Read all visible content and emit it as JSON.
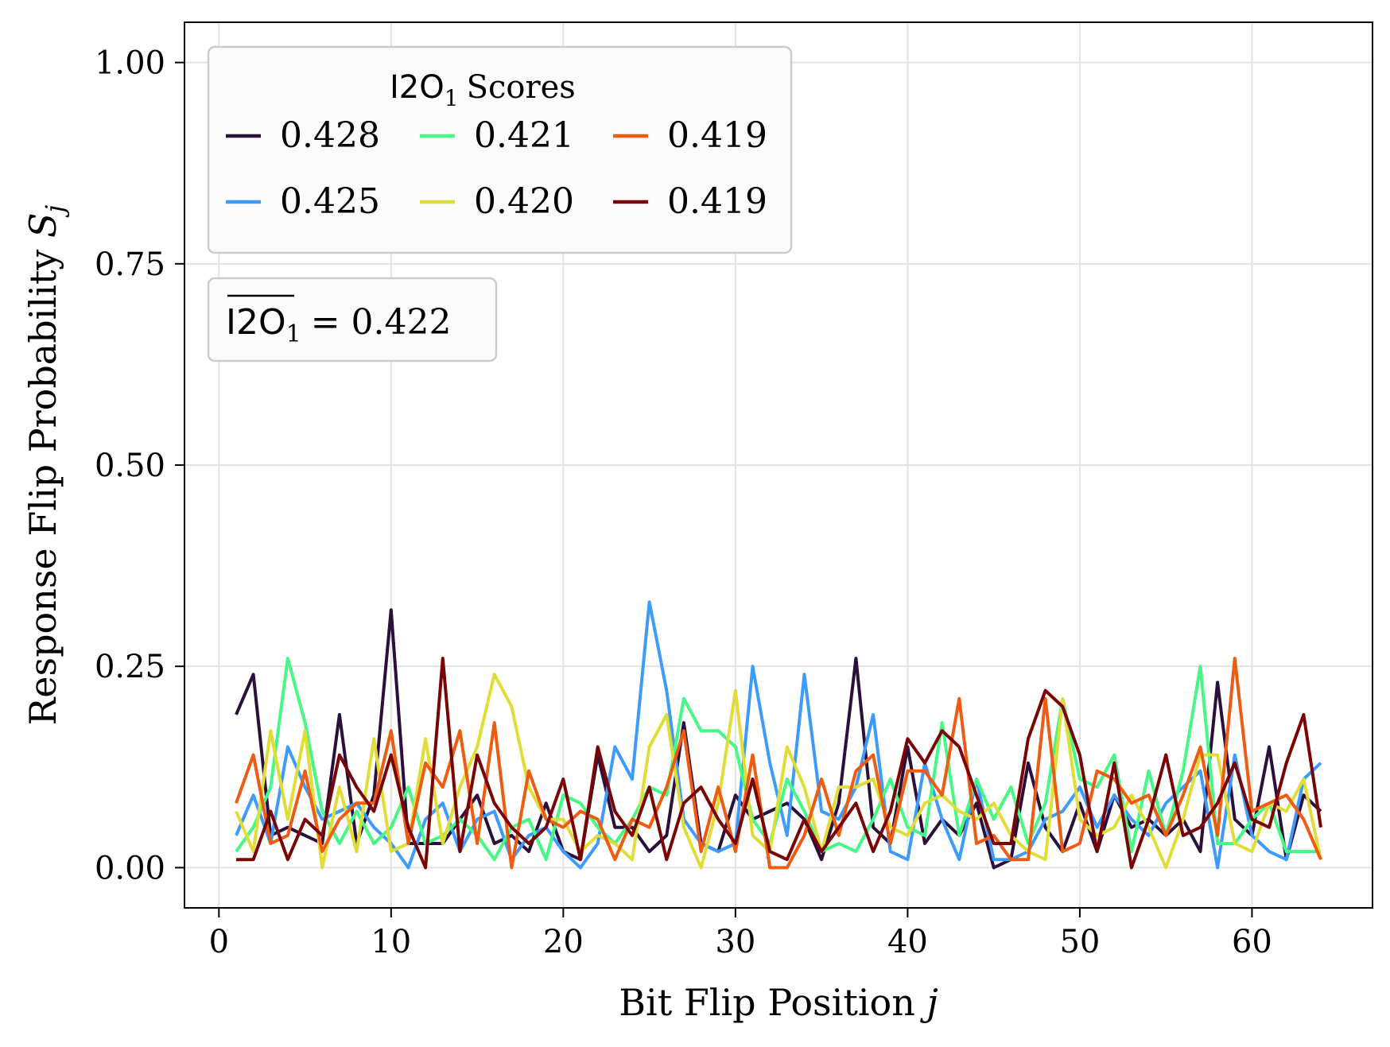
{
  "chart_data": {
    "type": "line",
    "xlabel": "Bit Flip Position",
    "xlabel_var": "j",
    "ylabel": "Response Flip Probability",
    "ylabel_var": "S",
    "ylabel_sub": "j",
    "xlim": [
      -2,
      67
    ],
    "ylim": [
      -0.05,
      1.05
    ],
    "xticks": [
      0,
      10,
      20,
      30,
      40,
      50,
      60
    ],
    "xtick_labels": [
      "0",
      "10",
      "20",
      "30",
      "40",
      "50",
      "60"
    ],
    "yticks": [
      0.0,
      0.25,
      0.5,
      0.75,
      1.0
    ],
    "ytick_labels": [
      "0.00",
      "0.25",
      "0.50",
      "0.75",
      "1.00"
    ],
    "grid": true,
    "legend": {
      "placement": "top-left",
      "title_sans": "I2O",
      "title_sub": "1",
      "title_rest": "Scores",
      "columns": 3
    },
    "annotation": {
      "sans": "I2O",
      "sub": "1",
      "rest": "= 0.422"
    },
    "series": [
      {
        "name": "0.428",
        "color": "#2d0f3b",
        "x": [
          1,
          2,
          3,
          4,
          5,
          6,
          7,
          8,
          9,
          10,
          11,
          12,
          13,
          14,
          15,
          16,
          17,
          18,
          19,
          20,
          21,
          22,
          23,
          24,
          25,
          26,
          27,
          28,
          29,
          30,
          31,
          32,
          33,
          34,
          35,
          36,
          37,
          38,
          39,
          40,
          41,
          42,
          43,
          44,
          45,
          46,
          47,
          48,
          49,
          50,
          51,
          52,
          53,
          54,
          55,
          56,
          57,
          58,
          59,
          60,
          61,
          62,
          63,
          64
        ],
        "y": [
          0.19,
          0.24,
          0.04,
          0.05,
          0.04,
          0.03,
          0.19,
          0.03,
          0.09,
          0.32,
          0.03,
          0.03,
          0.03,
          0.06,
          0.09,
          0.03,
          0.04,
          0.02,
          0.08,
          0.02,
          0.01,
          0.14,
          0.05,
          0.05,
          0.02,
          0.04,
          0.18,
          0.03,
          0.02,
          0.09,
          0.06,
          0.07,
          0.08,
          0.06,
          0.01,
          0.08,
          0.26,
          0.05,
          0.03,
          0.15,
          0.03,
          0.06,
          0.04,
          0.08,
          0.0,
          0.01,
          0.13,
          0.05,
          0.02,
          0.08,
          0.02,
          0.09,
          0.05,
          0.06,
          0.04,
          0.06,
          0.02,
          0.23,
          0.06,
          0.04,
          0.15,
          0.01,
          0.09,
          0.07
        ]
      },
      {
        "name": "0.425",
        "color": "#3e9bfe",
        "x": [
          1,
          2,
          3,
          4,
          5,
          6,
          7,
          8,
          9,
          10,
          11,
          12,
          13,
          14,
          15,
          16,
          17,
          18,
          19,
          20,
          21,
          22,
          23,
          24,
          25,
          26,
          27,
          28,
          29,
          30,
          31,
          32,
          33,
          34,
          35,
          36,
          37,
          38,
          39,
          40,
          41,
          42,
          43,
          44,
          45,
          46,
          47,
          48,
          49,
          50,
          51,
          52,
          53,
          54,
          55,
          56,
          57,
          58,
          59,
          60,
          61,
          62,
          63,
          64
        ],
        "y": [
          0.04,
          0.09,
          0.03,
          0.15,
          0.1,
          0.06,
          0.07,
          0.08,
          0.05,
          0.03,
          0.0,
          0.06,
          0.08,
          0.02,
          0.06,
          0.07,
          0.01,
          0.04,
          0.05,
          0.02,
          0.0,
          0.03,
          0.15,
          0.11,
          0.33,
          0.22,
          0.06,
          0.03,
          0.02,
          0.03,
          0.25,
          0.13,
          0.04,
          0.24,
          0.07,
          0.06,
          0.1,
          0.19,
          0.02,
          0.01,
          0.13,
          0.06,
          0.01,
          0.11,
          0.01,
          0.01,
          0.02,
          0.06,
          0.07,
          0.1,
          0.05,
          0.09,
          0.06,
          0.04,
          0.08,
          0.1,
          0.12,
          0.0,
          0.14,
          0.04,
          0.02,
          0.01,
          0.11,
          0.13
        ]
      },
      {
        "name": "0.421",
        "color": "#46f884",
        "x": [
          1,
          2,
          3,
          4,
          5,
          6,
          7,
          8,
          9,
          10,
          11,
          12,
          13,
          14,
          15,
          16,
          17,
          18,
          19,
          20,
          21,
          22,
          23,
          24,
          25,
          26,
          27,
          28,
          29,
          30,
          31,
          32,
          33,
          34,
          35,
          36,
          37,
          38,
          39,
          40,
          41,
          42,
          43,
          44,
          45,
          46,
          47,
          48,
          49,
          50,
          51,
          52,
          53,
          54,
          55,
          56,
          57,
          58,
          59,
          60,
          61,
          62,
          63,
          64
        ],
        "y": [
          0.02,
          0.05,
          0.1,
          0.26,
          0.18,
          0.07,
          0.03,
          0.07,
          0.03,
          0.05,
          0.1,
          0.03,
          0.04,
          0.06,
          0.04,
          0.01,
          0.05,
          0.06,
          0.01,
          0.09,
          0.08,
          0.05,
          0.03,
          0.06,
          0.1,
          0.09,
          0.21,
          0.17,
          0.17,
          0.15,
          0.06,
          0.03,
          0.11,
          0.07,
          0.02,
          0.03,
          0.02,
          0.06,
          0.11,
          0.05,
          0.04,
          0.18,
          0.04,
          0.11,
          0.06,
          0.1,
          0.03,
          0.08,
          0.21,
          0.11,
          0.1,
          0.14,
          0.02,
          0.12,
          0.04,
          0.12,
          0.25,
          0.03,
          0.03,
          0.06,
          0.08,
          0.02,
          0.02,
          0.02
        ]
      },
      {
        "name": "0.420",
        "color": "#e1dd37",
        "x": [
          1,
          2,
          3,
          4,
          5,
          6,
          7,
          8,
          9,
          10,
          11,
          12,
          13,
          14,
          15,
          16,
          17,
          18,
          19,
          20,
          21,
          22,
          23,
          24,
          25,
          26,
          27,
          28,
          29,
          30,
          31,
          32,
          33,
          34,
          35,
          36,
          37,
          38,
          39,
          40,
          41,
          42,
          43,
          44,
          45,
          46,
          47,
          48,
          49,
          50,
          51,
          52,
          53,
          54,
          55,
          56,
          57,
          58,
          59,
          60,
          61,
          62,
          63,
          64
        ],
        "y": [
          0.07,
          0.02,
          0.17,
          0.06,
          0.17,
          0.0,
          0.1,
          0.02,
          0.16,
          0.02,
          0.03,
          0.16,
          0.03,
          0.1,
          0.15,
          0.24,
          0.2,
          0.1,
          0.06,
          0.06,
          0.02,
          0.04,
          0.03,
          0.01,
          0.15,
          0.19,
          0.05,
          0.0,
          0.08,
          0.22,
          0.04,
          0.02,
          0.15,
          0.1,
          0.02,
          0.1,
          0.1,
          0.11,
          0.05,
          0.04,
          0.08,
          0.09,
          0.07,
          0.06,
          0.08,
          0.04,
          0.02,
          0.01,
          0.21,
          0.06,
          0.04,
          0.05,
          0.09,
          0.05,
          0.0,
          0.06,
          0.14,
          0.14,
          0.03,
          0.02,
          0.08,
          0.07,
          0.11,
          0.01
        ]
      },
      {
        "name": "0.419",
        "color": "#f05b12",
        "x": [
          1,
          2,
          3,
          4,
          5,
          6,
          7,
          8,
          9,
          10,
          11,
          12,
          13,
          14,
          15,
          16,
          17,
          18,
          19,
          20,
          21,
          22,
          23,
          24,
          25,
          26,
          27,
          28,
          29,
          30,
          31,
          32,
          33,
          34,
          35,
          36,
          37,
          38,
          39,
          40,
          41,
          42,
          43,
          44,
          45,
          46,
          47,
          48,
          49,
          50,
          51,
          52,
          53,
          54,
          55,
          56,
          57,
          58,
          59,
          60,
          61,
          62,
          63,
          64
        ],
        "y": [
          0.08,
          0.14,
          0.03,
          0.04,
          0.12,
          0.02,
          0.06,
          0.08,
          0.08,
          0.17,
          0.03,
          0.13,
          0.1,
          0.17,
          0.03,
          0.18,
          0.0,
          0.12,
          0.06,
          0.05,
          0.07,
          0.06,
          0.01,
          0.06,
          0.05,
          0.1,
          0.17,
          0.02,
          0.1,
          0.02,
          0.14,
          0.0,
          0.0,
          0.04,
          0.11,
          0.04,
          0.12,
          0.14,
          0.03,
          0.12,
          0.12,
          0.09,
          0.21,
          0.03,
          0.04,
          0.01,
          0.01,
          0.21,
          0.02,
          0.03,
          0.12,
          0.11,
          0.08,
          0.09,
          0.04,
          0.09,
          0.15,
          0.04,
          0.26,
          0.07,
          0.08,
          0.09,
          0.06,
          0.01
        ]
      },
      {
        "name": "0.419",
        "color": "#7a0403",
        "x": [
          1,
          2,
          3,
          4,
          5,
          6,
          7,
          8,
          9,
          10,
          11,
          12,
          13,
          14,
          15,
          16,
          17,
          18,
          19,
          20,
          21,
          22,
          23,
          24,
          25,
          26,
          27,
          28,
          29,
          30,
          31,
          32,
          33,
          34,
          35,
          36,
          37,
          38,
          39,
          40,
          41,
          42,
          43,
          44,
          45,
          46,
          47,
          48,
          49,
          50,
          51,
          52,
          53,
          54,
          55,
          56,
          57,
          58,
          59,
          60,
          61,
          62,
          63,
          64
        ],
        "y": [
          0.01,
          0.01,
          0.07,
          0.01,
          0.06,
          0.04,
          0.14,
          0.1,
          0.07,
          0.14,
          0.05,
          0.0,
          0.26,
          0.02,
          0.14,
          0.08,
          0.05,
          0.03,
          0.05,
          0.11,
          0.01,
          0.15,
          0.07,
          0.04,
          0.1,
          0.01,
          0.08,
          0.1,
          0.06,
          0.03,
          0.11,
          0.02,
          0.01,
          0.06,
          0.02,
          0.05,
          0.08,
          0.02,
          0.07,
          0.16,
          0.13,
          0.17,
          0.15,
          0.09,
          0.03,
          0.03,
          0.16,
          0.22,
          0.2,
          0.14,
          0.02,
          0.13,
          0.0,
          0.06,
          0.14,
          0.04,
          0.05,
          0.08,
          0.13,
          0.06,
          0.05,
          0.13,
          0.19,
          0.05
        ]
      }
    ]
  }
}
